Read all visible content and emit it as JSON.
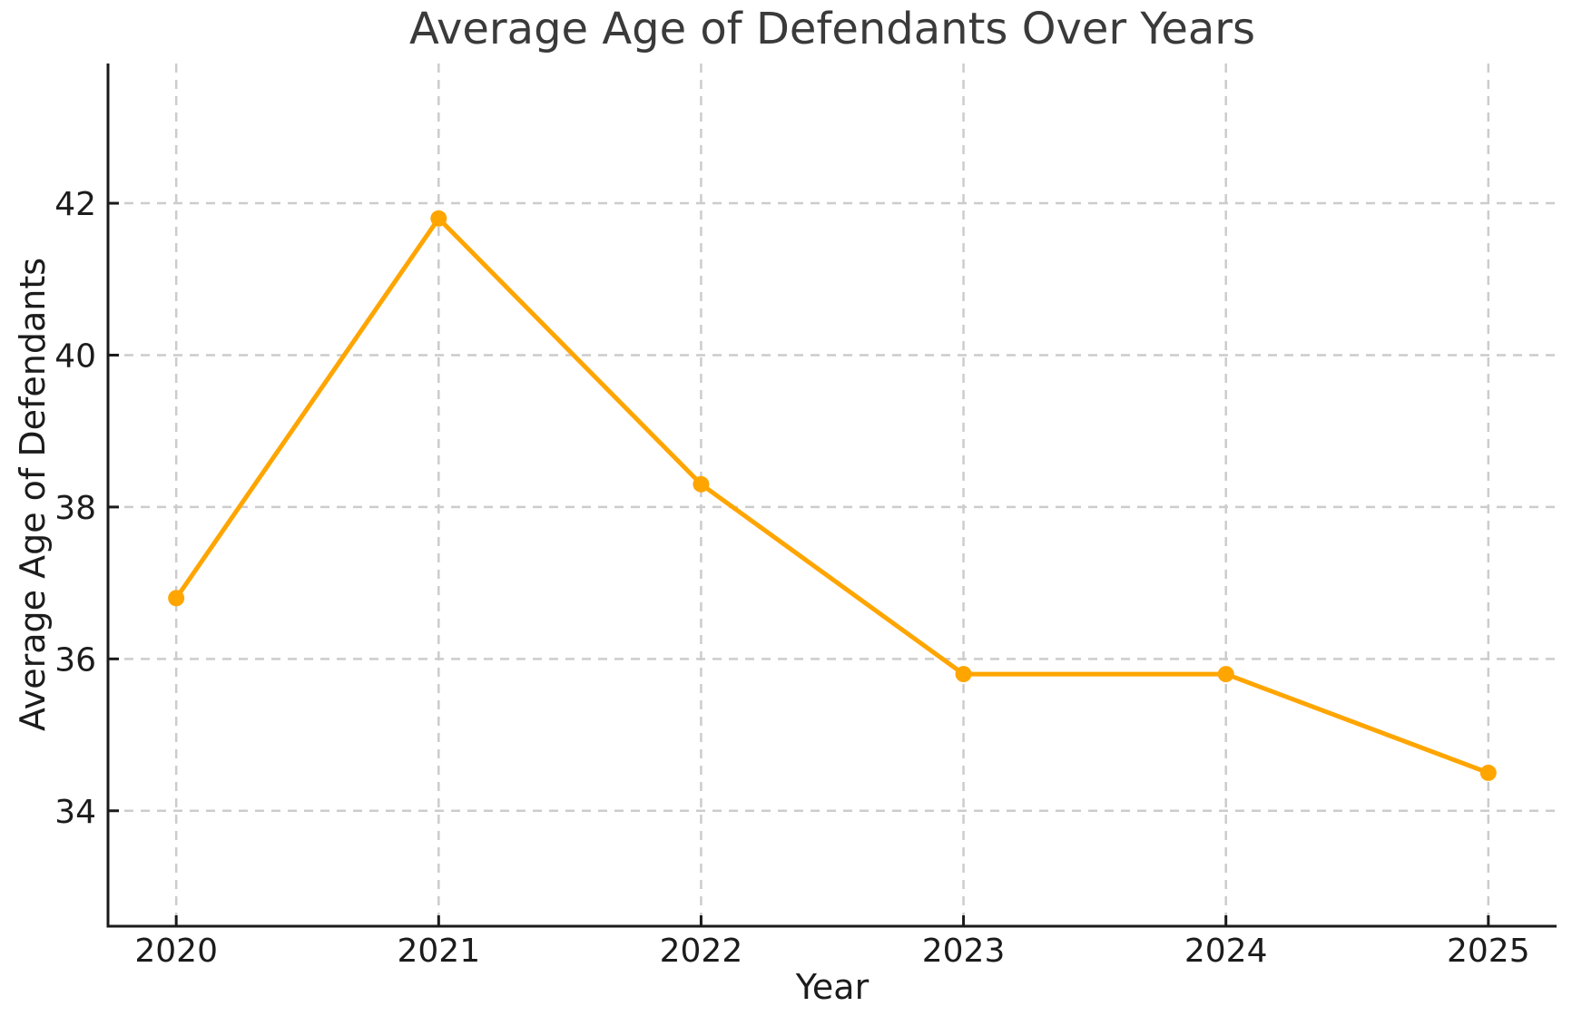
{
  "chart_data": {
    "type": "line",
    "title": "Average Age of Defendants Over Years",
    "xlabel": "Year",
    "ylabel": "Average Age of Defendants",
    "x": [
      2020,
      2021,
      2022,
      2023,
      2024,
      2025
    ],
    "series": [
      {
        "values": [
          36.8,
          41.8,
          38.3,
          35.8,
          35.8,
          34.5
        ],
        "color": "#FFA500",
        "marker": "circle",
        "line_width": 5,
        "marker_radius": 9
      }
    ],
    "xticks": [
      "2020",
      "2021",
      "2022",
      "2023",
      "2024",
      "2025"
    ],
    "xtick_positions": [
      2020,
      2021,
      2022,
      2023,
      2024,
      2025
    ],
    "yticks": [
      "34",
      "36",
      "38",
      "40",
      "42"
    ],
    "ytick_positions": [
      34,
      36,
      38,
      40,
      42
    ],
    "xlim": [
      2019.74,
      2025.26
    ],
    "ylim": [
      32.48,
      43.84
    ],
    "grid": "dashed",
    "legend": false
  },
  "colors": {
    "line": "#FFA500",
    "grid": "#cccccc",
    "spine": "#1a1a1a",
    "tick_mark": "#1a1a1a",
    "tick_text": "#1c1c1c",
    "title_text": "#3a3a3a",
    "background": "#ffffff"
  }
}
